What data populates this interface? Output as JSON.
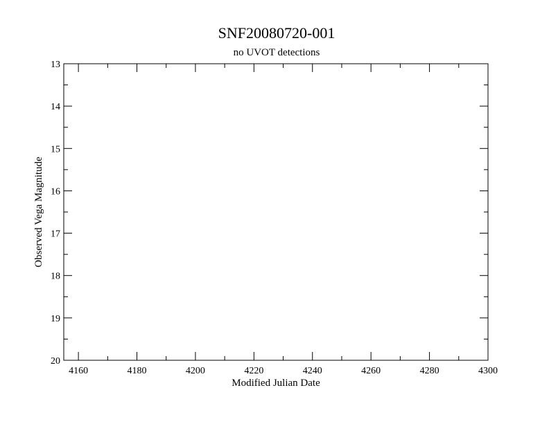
{
  "chart_data": {
    "type": "scatter",
    "title": "SNF20080720-001",
    "subtitle": "no UVOT detections",
    "xlabel": "Modified Julian Date",
    "ylabel": "Observed Vega Magnitude",
    "xlim": [
      4155,
      4300
    ],
    "ylim": [
      13,
      20
    ],
    "y_inverted": true,
    "x_major_ticks": [
      4160,
      4180,
      4200,
      4220,
      4240,
      4260,
      4280,
      4300
    ],
    "x_minor_step": 10,
    "y_major_ticks": [
      13,
      14,
      15,
      16,
      17,
      18,
      19,
      20
    ],
    "y_minor_step": 0.5,
    "grid": false,
    "series": []
  }
}
